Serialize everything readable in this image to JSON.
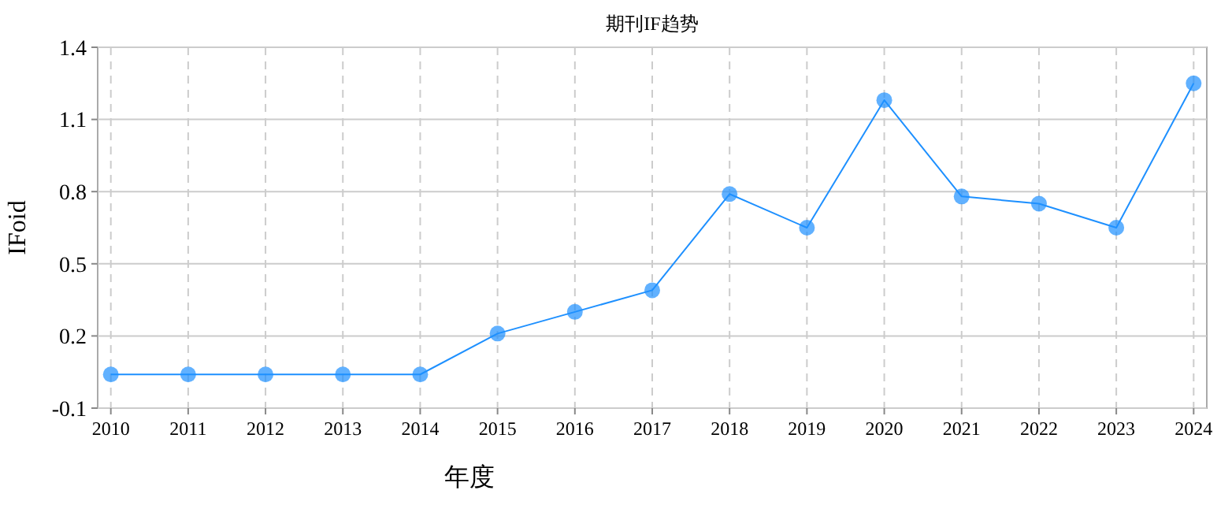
{
  "chart_data": {
    "type": "line",
    "title": "期刊IF趋势",
    "xlabel": "年度",
    "ylabel": "IFoid",
    "categories": [
      "2010",
      "2011",
      "2012",
      "2013",
      "2014",
      "2015",
      "2016",
      "2017",
      "2018",
      "2019",
      "2020",
      "2021",
      "2022",
      "2023",
      "2024"
    ],
    "series": [
      {
        "color": "#1e90ff",
        "values": [
          0.04,
          0.04,
          0.04,
          0.04,
          0.04,
          0.21,
          0.3,
          0.39,
          0.79,
          0.65,
          1.18,
          0.78,
          0.75,
          0.65,
          1.25
        ]
      }
    ],
    "ylim": [
      -0.1,
      1.4
    ],
    "yticks": [
      -0.1,
      0.2,
      0.5,
      0.8,
      1.1,
      1.4
    ],
    "grid": true,
    "marker": "circle",
    "line_style": "solid"
  }
}
